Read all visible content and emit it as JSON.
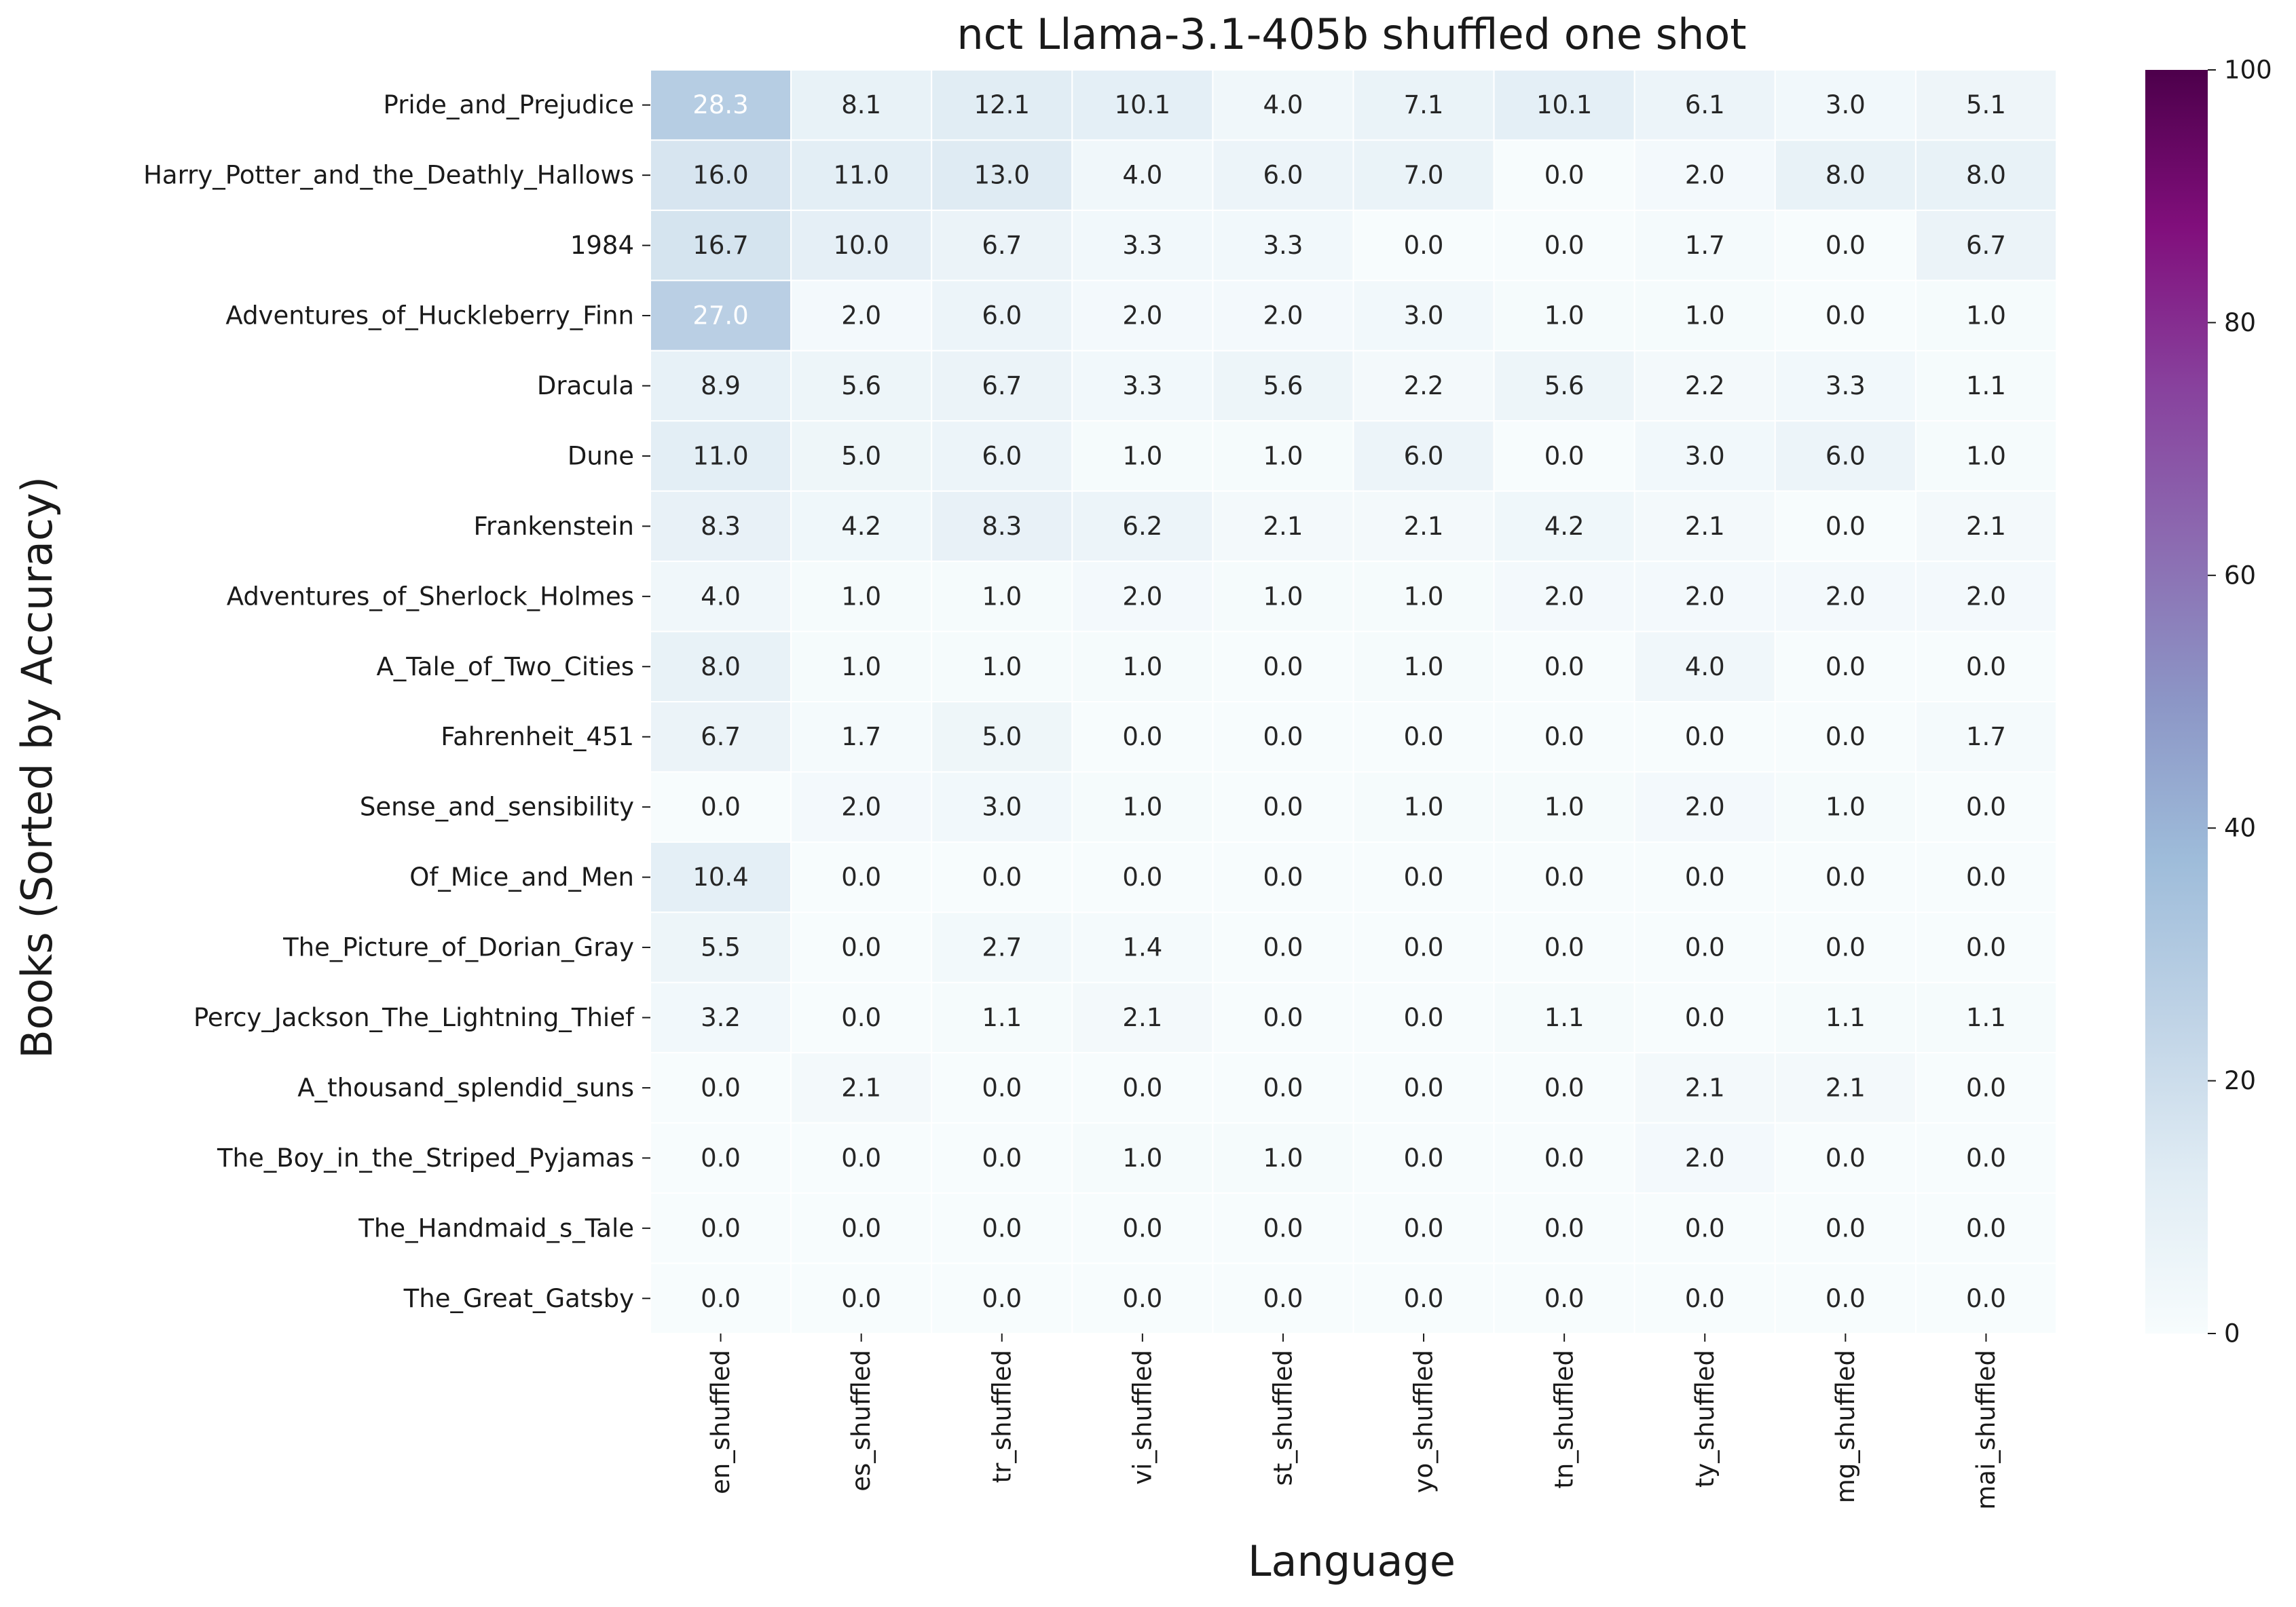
{
  "chart_data": {
    "type": "heatmap",
    "title": "nct Llama-3.1-405b shuffled one shot",
    "xlabel": "Language",
    "ylabel": "Books (Sorted by Accuracy)",
    "columns": [
      "en_shuffled",
      "es_shuffled",
      "tr_shuffled",
      "vi_shuffled",
      "st_shuffled",
      "yo_shuffled",
      "tn_shuffled",
      "ty_shuffled",
      "mg_shuffled",
      "mai_shuffled"
    ],
    "rows": [
      "Pride_and_Prejudice",
      "Harry_Potter_and_the_Deathly_Hallows",
      "1984",
      "Adventures_of_Huckleberry_Finn",
      "Dracula",
      "Dune",
      "Frankenstein",
      "Adventures_of_Sherlock_Holmes",
      "A_Tale_of_Two_Cities",
      "Fahrenheit_451",
      "Sense_and_sensibility",
      "Of_Mice_and_Men",
      "The_Picture_of_Dorian_Gray",
      "Percy_Jackson_The_Lightning_Thief",
      "A_thousand_splendid_suns",
      "The_Boy_in_the_Striped_Pyjamas",
      "The_Handmaid_s_Tale",
      "The_Great_Gatsby"
    ],
    "values": [
      [
        28.3,
        8.1,
        12.1,
        10.1,
        4.0,
        7.1,
        10.1,
        6.1,
        3.0,
        5.1
      ],
      [
        16.0,
        11.0,
        13.0,
        4.0,
        6.0,
        7.0,
        0.0,
        2.0,
        8.0,
        8.0
      ],
      [
        16.7,
        10.0,
        6.7,
        3.3,
        3.3,
        0.0,
        0.0,
        1.7,
        0.0,
        6.7
      ],
      [
        27.0,
        2.0,
        6.0,
        2.0,
        2.0,
        3.0,
        1.0,
        1.0,
        0.0,
        1.0
      ],
      [
        8.9,
        5.6,
        6.7,
        3.3,
        5.6,
        2.2,
        5.6,
        2.2,
        3.3,
        1.1
      ],
      [
        11.0,
        5.0,
        6.0,
        1.0,
        1.0,
        6.0,
        0.0,
        3.0,
        6.0,
        1.0
      ],
      [
        8.3,
        4.2,
        8.3,
        6.2,
        2.1,
        2.1,
        4.2,
        2.1,
        0.0,
        2.1
      ],
      [
        4.0,
        1.0,
        1.0,
        2.0,
        1.0,
        1.0,
        2.0,
        2.0,
        2.0,
        2.0
      ],
      [
        8.0,
        1.0,
        1.0,
        1.0,
        0.0,
        1.0,
        0.0,
        4.0,
        0.0,
        0.0
      ],
      [
        6.7,
        1.7,
        5.0,
        0.0,
        0.0,
        0.0,
        0.0,
        0.0,
        0.0,
        1.7
      ],
      [
        0.0,
        2.0,
        3.0,
        1.0,
        0.0,
        1.0,
        1.0,
        2.0,
        1.0,
        0.0
      ],
      [
        10.4,
        0.0,
        0.0,
        0.0,
        0.0,
        0.0,
        0.0,
        0.0,
        0.0,
        0.0
      ],
      [
        5.5,
        0.0,
        2.7,
        1.4,
        0.0,
        0.0,
        0.0,
        0.0,
        0.0,
        0.0
      ],
      [
        3.2,
        0.0,
        1.1,
        2.1,
        0.0,
        0.0,
        1.1,
        0.0,
        1.1,
        1.1
      ],
      [
        0.0,
        2.1,
        0.0,
        0.0,
        0.0,
        0.0,
        0.0,
        2.1,
        2.1,
        0.0
      ],
      [
        0.0,
        0.0,
        0.0,
        1.0,
        1.0,
        0.0,
        0.0,
        2.0,
        0.0,
        0.0
      ],
      [
        0.0,
        0.0,
        0.0,
        0.0,
        0.0,
        0.0,
        0.0,
        0.0,
        0.0,
        0.0
      ],
      [
        0.0,
        0.0,
        0.0,
        0.0,
        0.0,
        0.0,
        0.0,
        0.0,
        0.0,
        0.0
      ]
    ],
    "value_format": "0.0",
    "vmin": 0,
    "vmax": 100,
    "colormap": "BuPu",
    "colormap_stops": [
      "#f7fcfd",
      "#e0ecf4",
      "#bfd3e6",
      "#9ebcda",
      "#8c96c6",
      "#8c6bb1",
      "#88419d",
      "#810f7c",
      "#4d004b"
    ],
    "colorbar_ticks": [
      0,
      20,
      40,
      60,
      80,
      100
    ],
    "grid": false,
    "cell_border_color": "#ffffff"
  }
}
